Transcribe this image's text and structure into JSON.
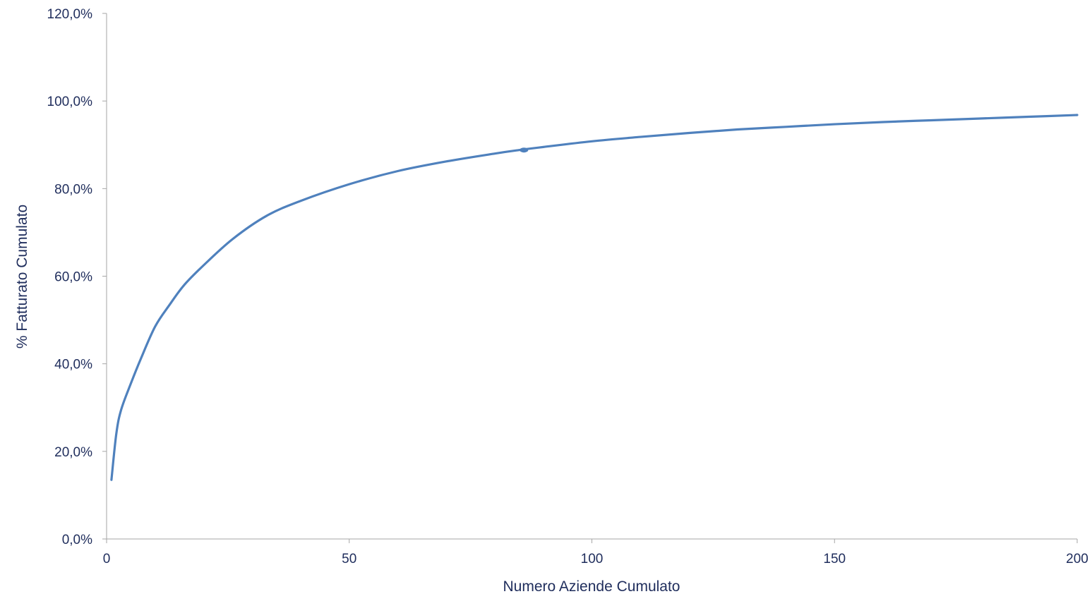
{
  "chart_data": {
    "type": "line",
    "xlabel": "Numero Aziende Cumulato",
    "ylabel": "% Fatturato Cumulato",
    "xlim": [
      0,
      200
    ],
    "ylim": [
      0,
      120
    ],
    "grid": false,
    "x_ticks": [
      0,
      50,
      100,
      150,
      200
    ],
    "x_tick_labels": [
      "0",
      "50",
      "100",
      "150",
      "200"
    ],
    "y_ticks": [
      0,
      20,
      40,
      60,
      80,
      100,
      120
    ],
    "y_tick_labels": [
      "0,0%",
      "20,0%",
      "40,0%",
      "60,0%",
      "80,0%",
      "100,0%",
      "120,0%"
    ],
    "series_color": "#4f81bd",
    "series": [
      {
        "x": [
          1,
          2,
          3,
          5,
          7,
          10,
          13,
          16,
          20,
          26,
          33,
          40,
          50,
          60,
          70,
          80,
          85,
          90,
          100,
          110,
          120,
          130,
          140,
          150,
          160,
          170,
          180,
          190,
          200
        ],
        "values": [
          13.5,
          24,
          29.5,
          35.5,
          41,
          48.5,
          53.5,
          58,
          62.5,
          68.5,
          73.8,
          77.2,
          81,
          84,
          86.2,
          88,
          88.8,
          89.5,
          90.8,
          91.8,
          92.7,
          93.5,
          94.1,
          94.7,
          95.2,
          95.6,
          96,
          96.4,
          96.8
        ]
      }
    ],
    "highlight_point": {
      "x": 86,
      "y": 88.8
    }
  }
}
